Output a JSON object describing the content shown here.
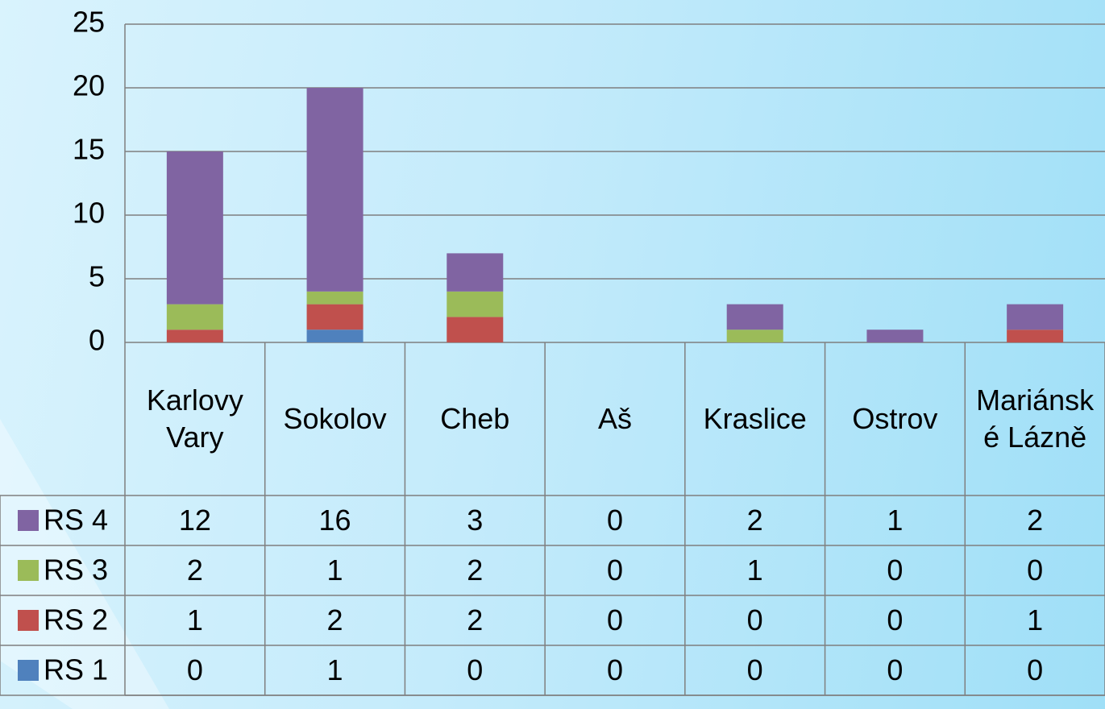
{
  "chart_data": {
    "type": "stacked-bar",
    "categories": [
      "Karlovy Vary",
      "Sokolov",
      "Cheb",
      "Aš",
      "Kraslice",
      "Ostrov",
      "Mariánské Lázně"
    ],
    "series": [
      {
        "name": "RS 4",
        "color": "#8064a2",
        "values": [
          12,
          16,
          3,
          0,
          2,
          1,
          2
        ]
      },
      {
        "name": "RS 3",
        "color": "#9bbb59",
        "values": [
          2,
          1,
          2,
          0,
          1,
          0,
          0
        ]
      },
      {
        "name": "RS 2",
        "color": "#c0504d",
        "values": [
          1,
          2,
          2,
          0,
          0,
          0,
          1
        ]
      },
      {
        "name": "RS 1",
        "color": "#4f81bd",
        "values": [
          0,
          1,
          0,
          0,
          0,
          0,
          0
        ]
      }
    ],
    "ylim": [
      0,
      25
    ],
    "yticks": [
      0,
      5,
      10,
      15,
      20,
      25
    ],
    "grid": true
  }
}
